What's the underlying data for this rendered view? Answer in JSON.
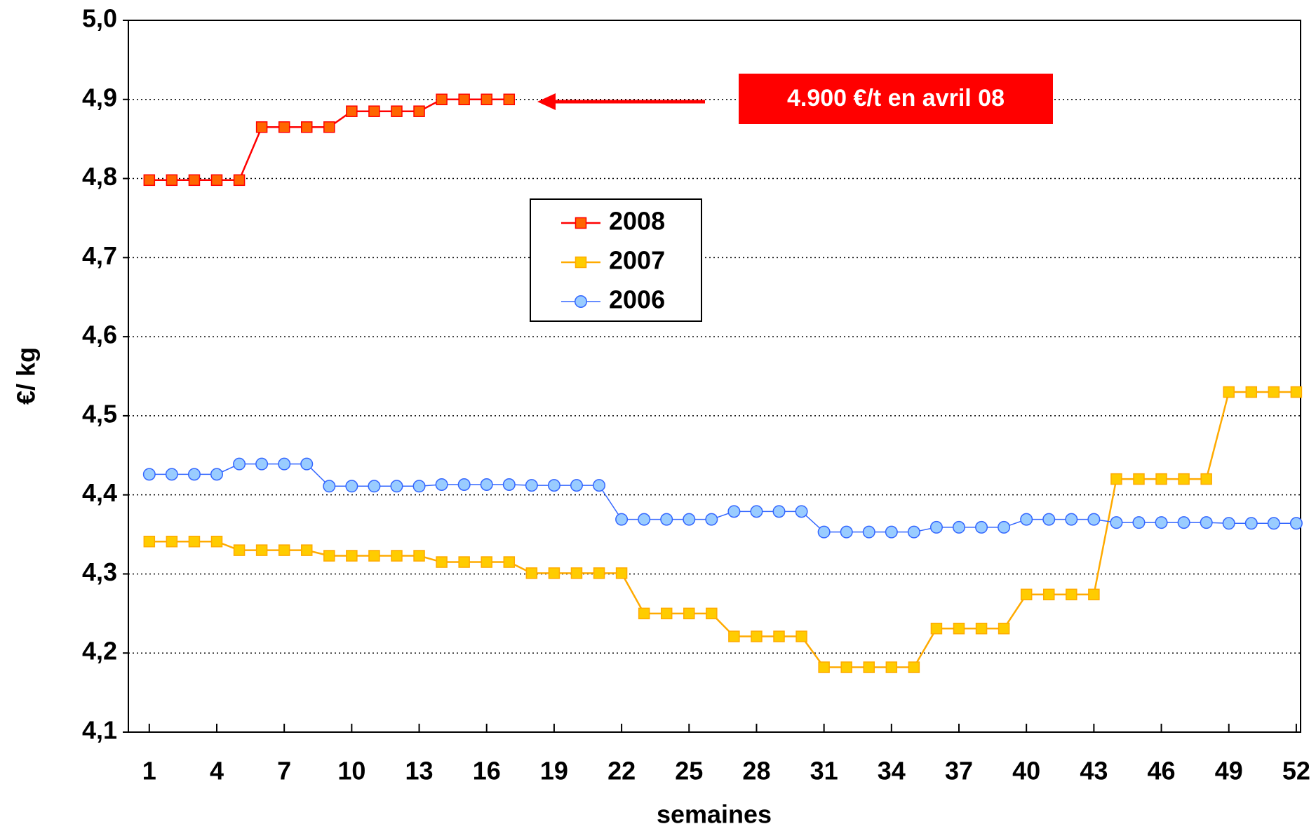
{
  "chart_data": {
    "type": "line",
    "xlabel": "semaines",
    "ylabel": "€/ kg",
    "x": [
      1,
      2,
      3,
      4,
      5,
      6,
      7,
      8,
      9,
      10,
      11,
      12,
      13,
      14,
      15,
      16,
      17,
      18,
      19,
      20,
      21,
      22,
      23,
      24,
      25,
      26,
      27,
      28,
      29,
      30,
      31,
      32,
      33,
      34,
      35,
      36,
      37,
      38,
      39,
      40,
      41,
      42,
      43,
      44,
      45,
      46,
      47,
      48,
      49,
      50,
      51,
      52
    ],
    "xlim": [
      0.07,
      52.19
    ],
    "xticks": [
      1,
      4,
      7,
      10,
      13,
      16,
      19,
      22,
      25,
      28,
      31,
      34,
      37,
      40,
      43,
      46,
      49,
      52
    ],
    "ylim": [
      4.1,
      5.0
    ],
    "yticks": [
      {
        "value": 4.1,
        "label": "4,1"
      },
      {
        "value": 4.2,
        "label": "4,2"
      },
      {
        "value": 4.3,
        "label": "4,3"
      },
      {
        "value": 4.4,
        "label": "4,4"
      },
      {
        "value": 4.5,
        "label": "4,5"
      },
      {
        "value": 4.6,
        "label": "4,6"
      },
      {
        "value": 4.7,
        "label": "4,7"
      },
      {
        "value": 4.8,
        "label": "4,8"
      },
      {
        "value": 4.9,
        "label": "4,9"
      },
      {
        "value": 5.0,
        "label": "5,0"
      }
    ],
    "grid": true,
    "legend": "center",
    "annotation": "4.900 €/t en avril 08",
    "series": [
      {
        "name": "2008",
        "color": "#ff0000",
        "marker": "square",
        "marker_color": "#ff6600",
        "values": [
          4.798,
          4.798,
          4.798,
          4.798,
          4.798,
          4.865,
          4.865,
          4.865,
          4.865,
          4.885,
          4.885,
          4.885,
          4.885,
          4.9,
          4.9,
          4.9,
          4.9,
          null,
          null,
          null,
          null,
          null,
          null,
          null,
          null,
          null,
          null,
          null,
          null,
          null,
          null,
          null,
          null,
          null,
          null,
          null,
          null,
          null,
          null,
          null,
          null,
          null,
          null,
          null,
          null,
          null,
          null,
          null,
          null,
          null,
          null,
          null
        ]
      },
      {
        "name": "2007",
        "color": "#ffaa00",
        "marker": "square",
        "marker_color": "#ffcc00",
        "values": [
          4.341,
          4.341,
          4.341,
          4.341,
          4.33,
          4.33,
          4.33,
          4.33,
          4.323,
          4.323,
          4.323,
          4.323,
          4.323,
          4.315,
          4.315,
          4.315,
          4.315,
          4.301,
          4.301,
          4.301,
          4.301,
          4.301,
          4.25,
          4.25,
          4.25,
          4.25,
          4.221,
          4.221,
          4.221,
          4.221,
          4.182,
          4.182,
          4.182,
          4.182,
          4.182,
          4.231,
          4.231,
          4.231,
          4.231,
          4.274,
          4.274,
          4.274,
          4.274,
          4.42,
          4.42,
          4.42,
          4.42,
          4.42,
          4.53,
          4.53,
          4.53,
          4.53
        ]
      },
      {
        "name": "2006",
        "color": "#3366ff",
        "marker": "circle",
        "marker_color": "#99ccff",
        "values": [
          4.426,
          4.426,
          4.426,
          4.426,
          4.439,
          4.439,
          4.439,
          4.439,
          4.411,
          4.411,
          4.411,
          4.411,
          4.411,
          4.413,
          4.413,
          4.413,
          4.413,
          4.412,
          4.412,
          4.412,
          4.412,
          4.369,
          4.369,
          4.369,
          4.369,
          4.369,
          4.379,
          4.379,
          4.379,
          4.379,
          4.353,
          4.353,
          4.353,
          4.353,
          4.353,
          4.359,
          4.359,
          4.359,
          4.359,
          4.369,
          4.369,
          4.369,
          4.369,
          4.365,
          4.365,
          4.365,
          4.365,
          4.365,
          4.364,
          4.364,
          4.364,
          4.364
        ]
      }
    ]
  }
}
